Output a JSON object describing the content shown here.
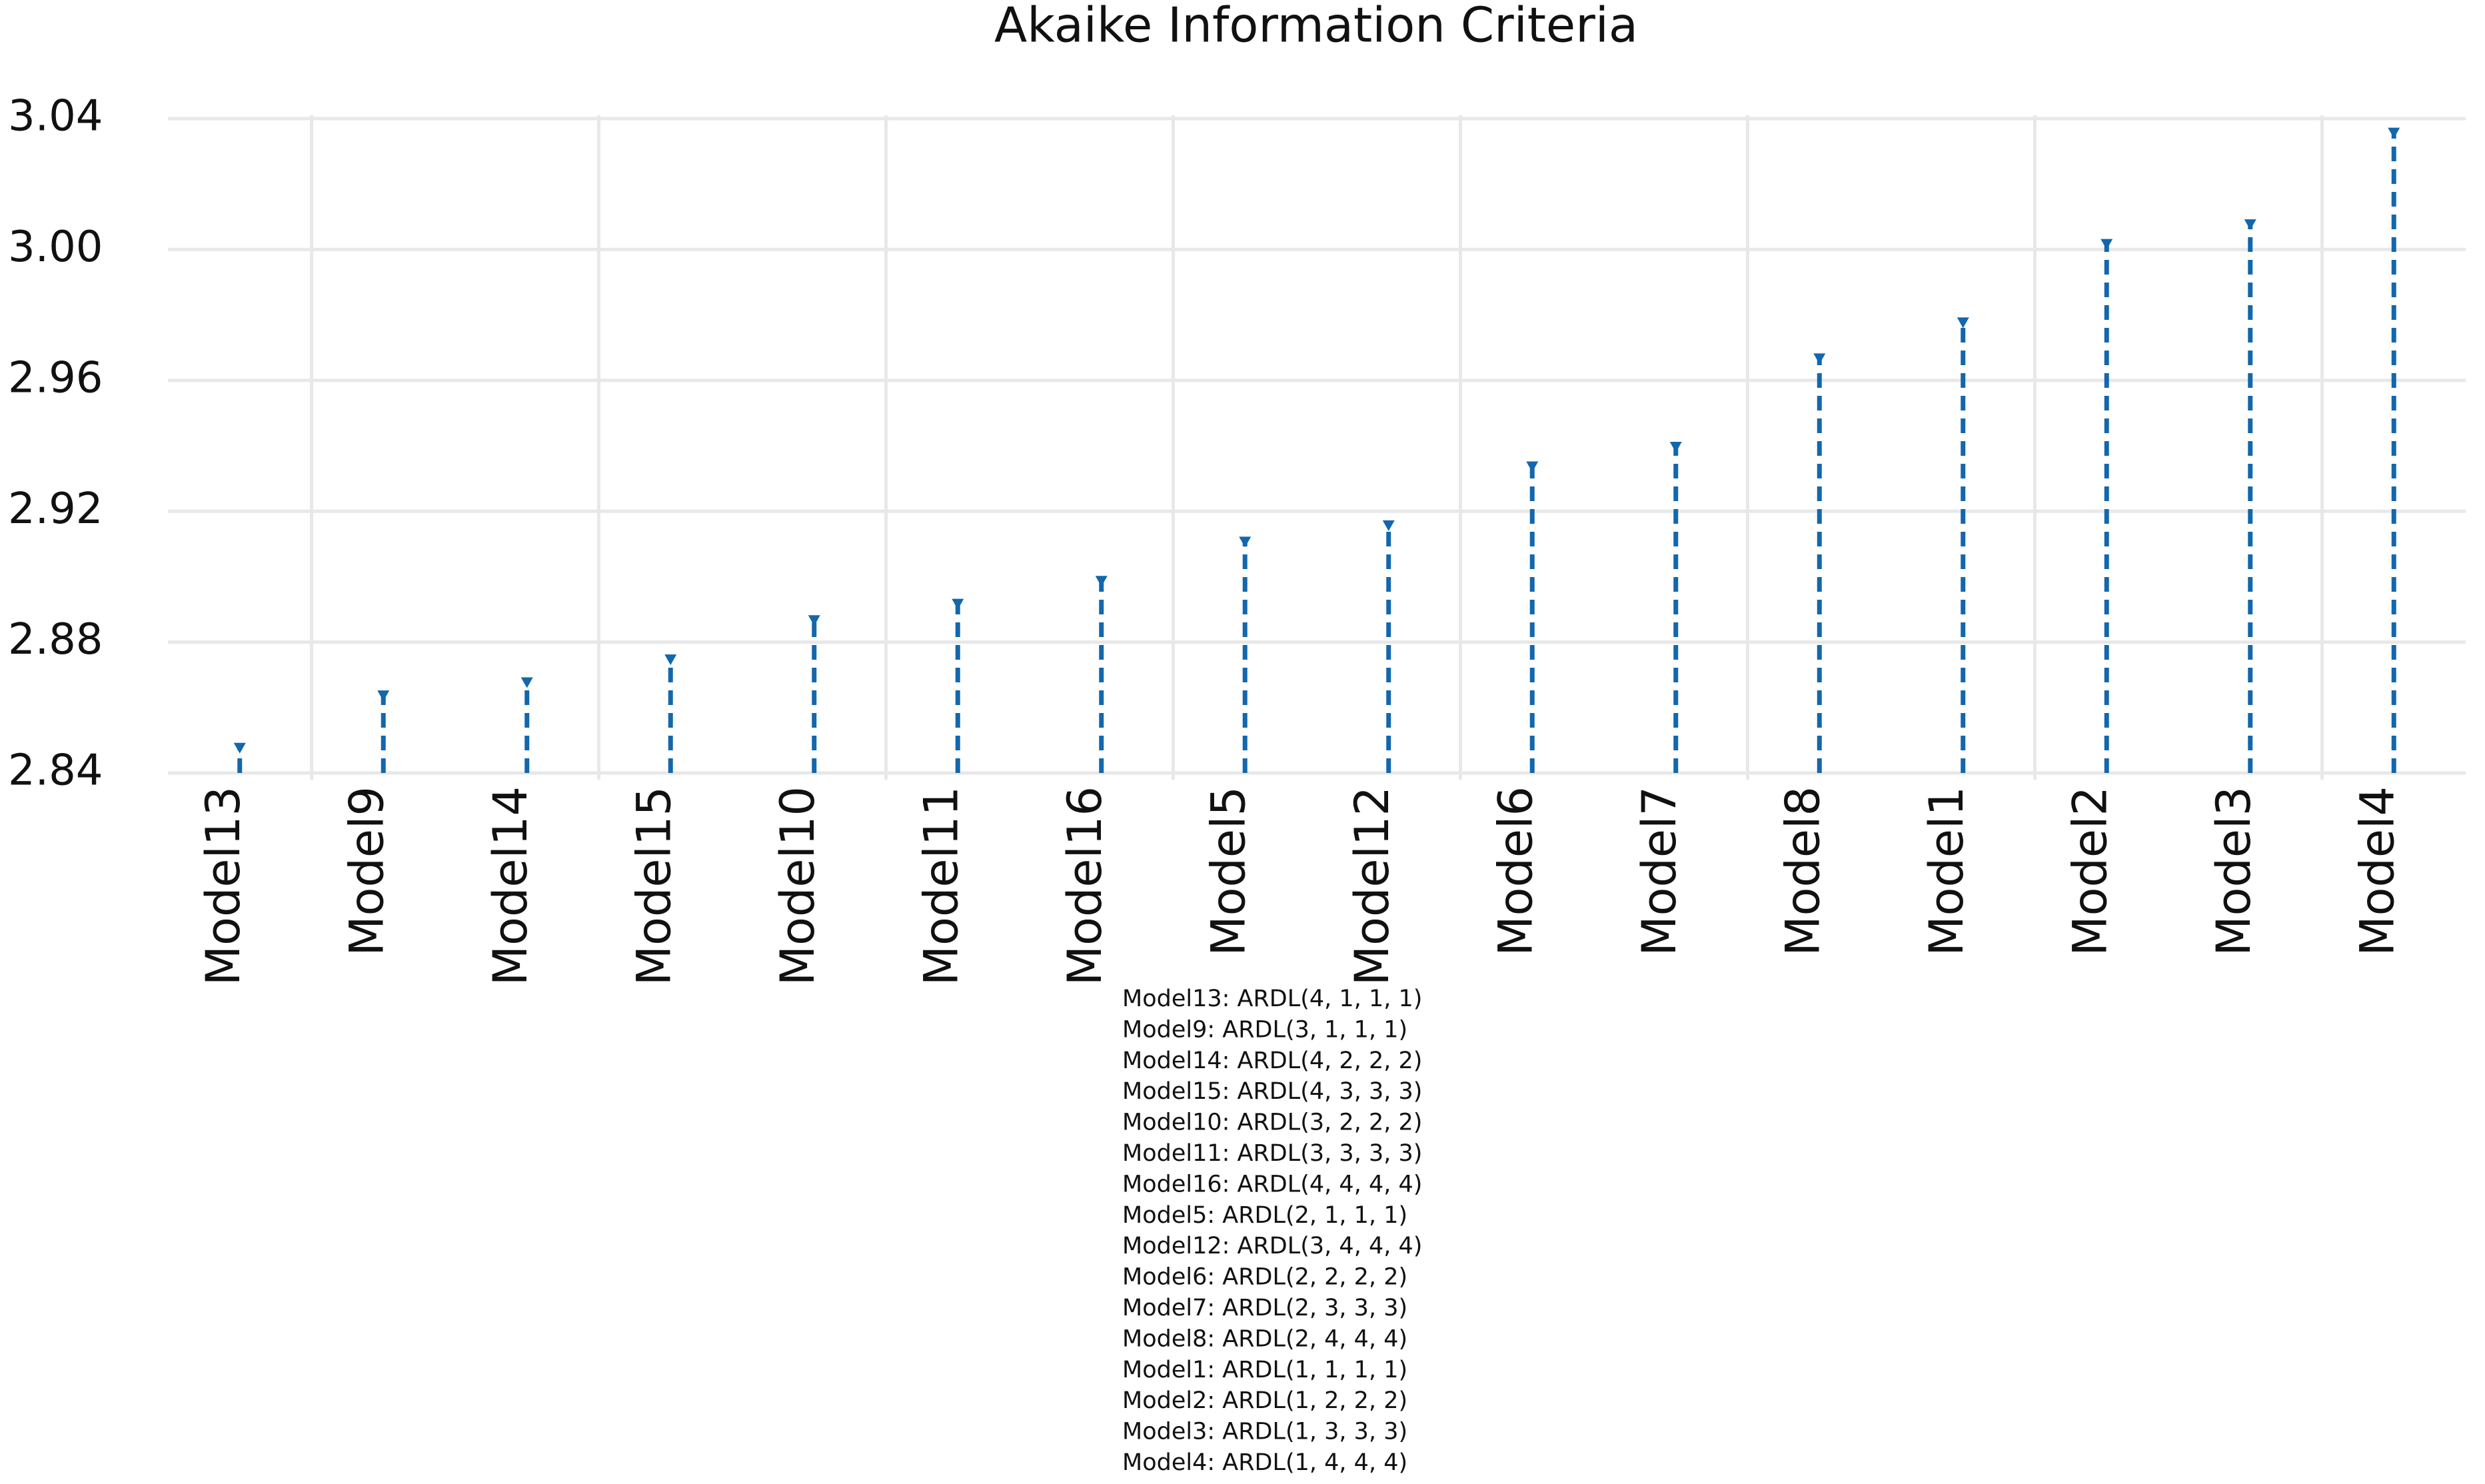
{
  "chart_data": {
    "type": "lollipop",
    "title": "Akaike Information Criteria",
    "categories": [
      "Model13",
      "Model9",
      "Model14",
      "Model15",
      "Model10",
      "Model11",
      "Model16",
      "Model5",
      "Model12",
      "Model6",
      "Model7",
      "Model8",
      "Model1",
      "Model2",
      "Model3",
      "Model4"
    ],
    "values": [
      2.848,
      2.864,
      2.868,
      2.875,
      2.887,
      2.892,
      2.899,
      2.911,
      2.916,
      2.934,
      2.94,
      2.967,
      2.978,
      3.002,
      3.008,
      3.036
    ],
    "color": "#1267ad",
    "ylim": [
      2.84,
      3.04
    ],
    "yticks": [
      2.84,
      2.88,
      2.92,
      2.96,
      {
        "value": 3,
        "label": "3.00"
      },
      3.04
    ],
    "grid": true,
    "notes": [
      "Model13: ARDL(4, 1, 1, 1)",
      "Model9: ARDL(3, 1, 1, 1)",
      "Model14: ARDL(4, 2, 2, 2)",
      "Model15: ARDL(4, 3, 3, 3)",
      "Model10: ARDL(3, 2, 2, 2)",
      "Model11: ARDL(3, 3, 3, 3)",
      "Model16: ARDL(4, 4, 4, 4)",
      "Model5: ARDL(2, 1, 1, 1)",
      "Model12: ARDL(3, 4, 4, 4)",
      "Model6: ARDL(2, 2, 2, 2)",
      "Model7: ARDL(2, 3, 3, 3)",
      "Model8: ARDL(2, 4, 4, 4)",
      "Model1: ARDL(1, 1, 1, 1)",
      "Model2: ARDL(1, 2, 2, 2)",
      "Model3: ARDL(1, 3, 3, 3)",
      "Model4: ARDL(1, 4, 4, 4)"
    ]
  }
}
